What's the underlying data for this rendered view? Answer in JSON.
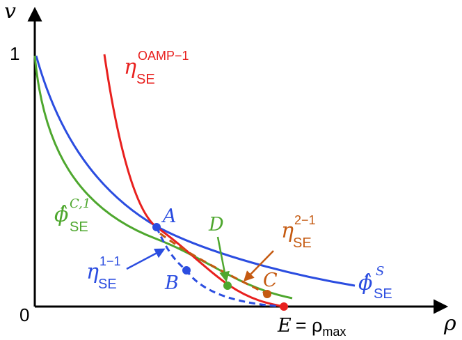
{
  "axes": {
    "y_axis_label": "v",
    "x_axis_label": "ρ",
    "y_tick_top": "1",
    "origin_label": "0"
  },
  "curves": {
    "oamp": {
      "sym": "η",
      "sub": "SE",
      "sup": "OAMP−1",
      "color": "#e8201e"
    },
    "phi_c1": {
      "sym": "ϕ̂",
      "sub": "SE",
      "sup": "C,1",
      "color": "#4ea72e"
    },
    "phi_s": {
      "sym": "ϕ̂",
      "sub": "SE",
      "sup": "S",
      "color": "#2b4de0"
    },
    "eta1": {
      "sym": "η",
      "sub": "SE",
      "sup": "1−1",
      "color": "#2b4de0"
    },
    "eta2": {
      "sym": "η",
      "sub": "SE",
      "sup": "2−1",
      "color": "#c55a11"
    }
  },
  "points": {
    "A": "A",
    "B": "B",
    "C": "C",
    "D": "D",
    "E_label": "E",
    "E_equals": "= ρ",
    "E_sub": "max"
  },
  "colors": {
    "red": "#e8201e",
    "green": "#4ea72e",
    "blue": "#2b4de0",
    "orange": "#c55a11",
    "black": "#000000"
  }
}
